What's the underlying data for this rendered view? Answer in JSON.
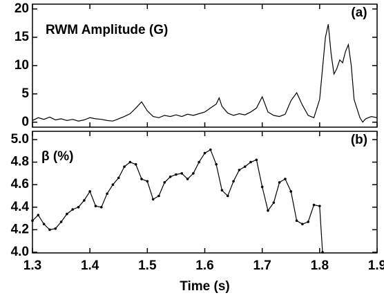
{
  "chart_data": [
    {
      "type": "line",
      "title": "RWM Amplitude (G)",
      "panel_label": "(a)",
      "color": "#000000",
      "x": [
        1.3,
        1.31,
        1.32,
        1.33,
        1.34,
        1.35,
        1.36,
        1.37,
        1.38,
        1.39,
        1.4,
        1.41,
        1.42,
        1.43,
        1.44,
        1.45,
        1.46,
        1.47,
        1.48,
        1.49,
        1.5,
        1.51,
        1.52,
        1.53,
        1.54,
        1.55,
        1.56,
        1.57,
        1.58,
        1.59,
        1.6,
        1.61,
        1.62,
        1.625,
        1.63,
        1.64,
        1.65,
        1.66,
        1.67,
        1.68,
        1.69,
        1.7,
        1.71,
        1.72,
        1.73,
        1.74,
        1.75,
        1.76,
        1.77,
        1.78,
        1.79,
        1.8,
        1.81,
        1.815,
        1.82,
        1.825,
        1.83,
        1.835,
        1.84,
        1.845,
        1.85,
        1.855,
        1.86,
        1.87,
        1.875,
        1.88,
        1.89,
        1.9
      ],
      "values": [
        0.3,
        0.8,
        0.5,
        0.9,
        0.4,
        0.6,
        0.3,
        0.5,
        0.2,
        0.4,
        0.8,
        0.6,
        0.5,
        0.3,
        0.2,
        0.6,
        1.0,
        1.5,
        2.5,
        3.6,
        2.0,
        1.0,
        0.8,
        1.2,
        1.0,
        1.3,
        1.0,
        1.4,
        1.2,
        1.5,
        1.8,
        2.5,
        3.2,
        4.3,
        2.8,
        1.6,
        1.2,
        1.5,
        1.3,
        1.8,
        2.5,
        4.5,
        1.8,
        1.2,
        1.0,
        1.4,
        3.8,
        5.2,
        3.0,
        1.2,
        0.8,
        4.0,
        15,
        17.3,
        12,
        8.5,
        9.5,
        11,
        10.5,
        12.5,
        13.7,
        10,
        4,
        0.8,
        0,
        0.6,
        1.0,
        0.8
      ],
      "xlim": [
        1.3,
        1.9
      ],
      "xticks": [
        1.3,
        1.4,
        1.5,
        1.6,
        1.7,
        1.8,
        1.9
      ],
      "ylim": [
        -1,
        20
      ],
      "yticks": [
        0,
        5,
        10,
        15,
        20
      ]
    },
    {
      "type": "line-markers",
      "title": "β (%)",
      "panel_label": "(b)",
      "xlabel": "Time (s)",
      "color": "#000000",
      "x": [
        1.3,
        1.31,
        1.32,
        1.33,
        1.34,
        1.35,
        1.36,
        1.37,
        1.38,
        1.39,
        1.4,
        1.41,
        1.42,
        1.43,
        1.44,
        1.45,
        1.46,
        1.47,
        1.48,
        1.49,
        1.5,
        1.51,
        1.52,
        1.53,
        1.54,
        1.55,
        1.56,
        1.57,
        1.58,
        1.59,
        1.6,
        1.61,
        1.62,
        1.63,
        1.64,
        1.65,
        1.66,
        1.67,
        1.68,
        1.69,
        1.7,
        1.71,
        1.72,
        1.73,
        1.74,
        1.75,
        1.76,
        1.77,
        1.78,
        1.79,
        1.8,
        1.805
      ],
      "values": [
        4.28,
        4.33,
        4.25,
        4.2,
        4.21,
        4.27,
        4.34,
        4.38,
        4.4,
        4.46,
        4.54,
        4.41,
        4.4,
        4.52,
        4.6,
        4.66,
        4.76,
        4.8,
        4.78,
        4.65,
        4.63,
        4.47,
        4.5,
        4.62,
        4.67,
        4.69,
        4.7,
        4.65,
        4.7,
        4.8,
        4.88,
        4.91,
        4.78,
        4.55,
        4.5,
        4.63,
        4.73,
        4.76,
        4.8,
        4.82,
        4.58,
        4.37,
        4.44,
        4.62,
        4.65,
        4.54,
        4.28,
        4.25,
        4.27,
        4.42,
        4.41,
        4.0
      ],
      "xlim": [
        1.3,
        1.9
      ],
      "xticks": [
        1.3,
        1.4,
        1.5,
        1.6,
        1.7,
        1.8,
        1.9
      ],
      "ylim": [
        4.0,
        5.0
      ],
      "yticks": [
        {
          "value": 4.0,
          "label": "4.0"
        },
        4.2,
        4.4,
        4.6,
        4.8,
        {
          "value": 5.0,
          "label": "5.0"
        }
      ]
    }
  ]
}
